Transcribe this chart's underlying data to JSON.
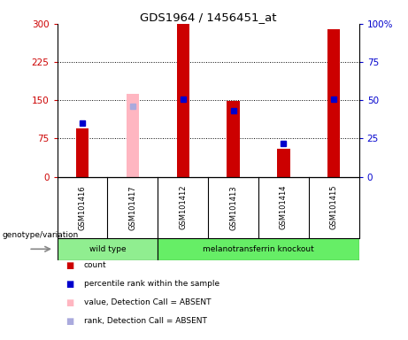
{
  "title": "GDS1964 / 1456451_at",
  "samples": [
    "GSM101416",
    "GSM101417",
    "GSM101412",
    "GSM101413",
    "GSM101414",
    "GSM101415"
  ],
  "count_values": [
    95,
    0,
    300,
    148,
    55,
    290
  ],
  "count_absent": [
    0,
    163,
    0,
    0,
    0,
    0
  ],
  "absent_flags": [
    false,
    true,
    false,
    false,
    false,
    false
  ],
  "rank_y": [
    105,
    0,
    153,
    130,
    65,
    153
  ],
  "rank_absent_y": [
    0,
    138,
    0,
    0,
    0,
    0
  ],
  "show_rank_present": [
    true,
    false,
    true,
    true,
    true,
    true
  ],
  "show_rank_absent": [
    false,
    true,
    false,
    false,
    false,
    false
  ],
  "genotype_labels": [
    "wild type",
    "melanotransferrin knockout"
  ],
  "wild_type_cols": [
    0,
    1
  ],
  "knockout_cols": [
    2,
    5
  ],
  "y_left_ticks": [
    0,
    75,
    150,
    225,
    300
  ],
  "y_right_labels": [
    "0",
    "25",
    "50",
    "75",
    "100%"
  ],
  "y_right_vals": [
    0,
    75,
    150,
    225,
    300
  ],
  "dotted_lines": [
    75,
    150,
    225
  ],
  "bar_color_present": "#cc0000",
  "bar_color_absent": "#ffb6c1",
  "rank_color_present": "#0000cd",
  "rank_color_absent": "#aaaadd",
  "bar_width": 0.25,
  "background_color": "#d8d8d8",
  "legend_items": [
    {
      "label": "count",
      "color": "#cc0000"
    },
    {
      "label": "percentile rank within the sample",
      "color": "#0000cd"
    },
    {
      "label": "value, Detection Call = ABSENT",
      "color": "#ffb6c1"
    },
    {
      "label": "rank, Detection Call = ABSENT",
      "color": "#aaaadd"
    }
  ]
}
